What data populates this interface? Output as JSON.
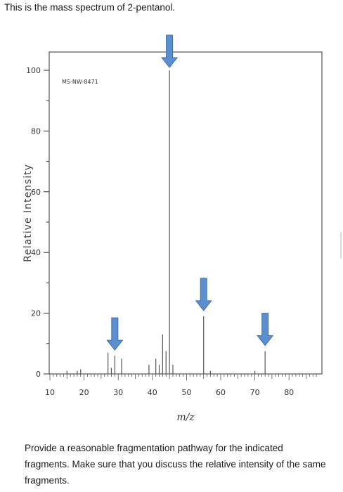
{
  "intro_text": "This is the mass spectrum of 2-pentanol.",
  "question_text": "Provide a reasonable fragmentation pathway for the indicated fragments. Make sure that you discuss the relative intensity of the same fragments.",
  "arrow_color": "#5b8fd0",
  "chart_data": {
    "type": "bar",
    "title": "",
    "watermark": "MS-NW-8471",
    "xlabel": "m/z",
    "ylabel": "Relative Intensity",
    "xlim": [
      5,
      90
    ],
    "ylim": [
      0,
      105
    ],
    "xticks": [
      "10",
      "20",
      "30",
      "40",
      "50",
      "60",
      "70",
      "80"
    ],
    "yticks": [
      "0",
      "20",
      "40",
      "60",
      "80",
      "100"
    ],
    "peaks": [
      {
        "mz": 15,
        "intensity": 1
      },
      {
        "mz": 18,
        "intensity": 1
      },
      {
        "mz": 19,
        "intensity": 1.5
      },
      {
        "mz": 27,
        "intensity": 7
      },
      {
        "mz": 28,
        "intensity": 2
      },
      {
        "mz": 29,
        "intensity": 6
      },
      {
        "mz": 31,
        "intensity": 5
      },
      {
        "mz": 39,
        "intensity": 3
      },
      {
        "mz": 41,
        "intensity": 5
      },
      {
        "mz": 42,
        "intensity": 3
      },
      {
        "mz": 43,
        "intensity": 13
      },
      {
        "mz": 44,
        "intensity": 7.5
      },
      {
        "mz": 45,
        "intensity": 100
      },
      {
        "mz": 46,
        "intensity": 3
      },
      {
        "mz": 55,
        "intensity": 19
      },
      {
        "mz": 57,
        "intensity": 1
      },
      {
        "mz": 70,
        "intensity": 1
      },
      {
        "mz": 73,
        "intensity": 7.5
      }
    ],
    "indicated_peaks": [
      29,
      45,
      55,
      73
    ]
  }
}
